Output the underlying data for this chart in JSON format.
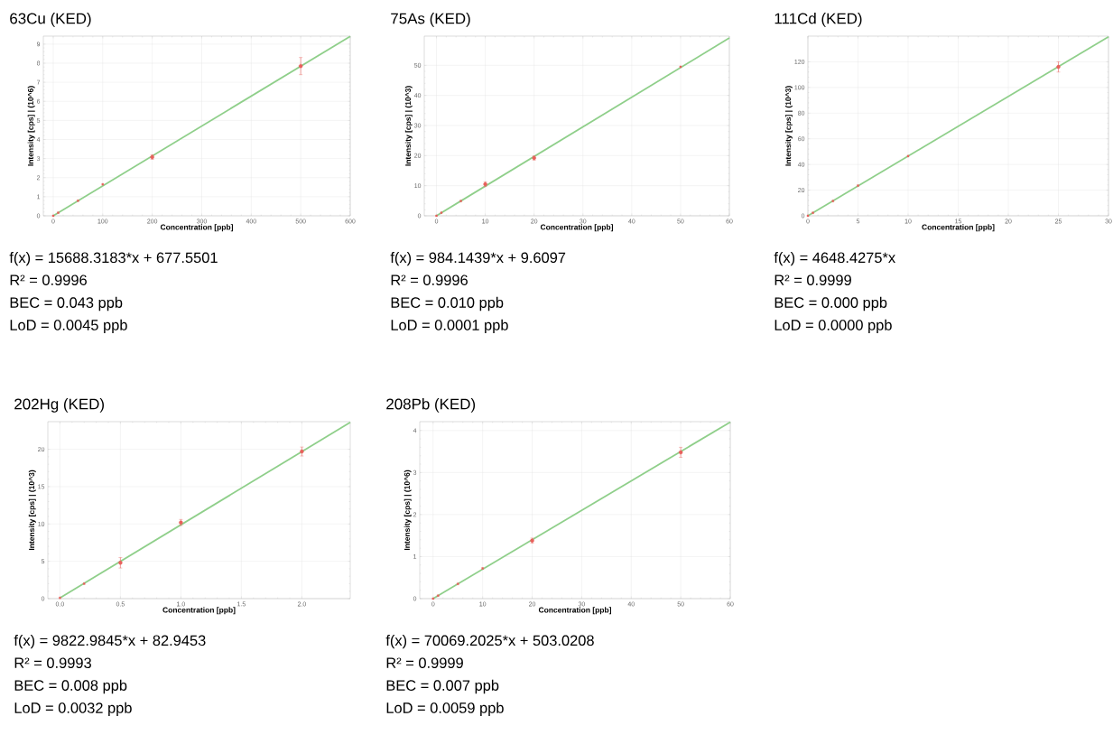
{
  "chart_data": [
    {
      "type": "scatter",
      "title": "63Cu (KED)",
      "xlabel": "Concentration [ppb]",
      "ylabel": "Intensity [cps] | (10^6)",
      "xlim": [
        -20,
        600
      ],
      "ylim": [
        0,
        9.42
      ],
      "xticks": [
        0,
        100,
        200,
        300,
        400,
        500,
        600
      ],
      "yticks": [
        0,
        1,
        2,
        3,
        4,
        5,
        6,
        7,
        8,
        9
      ],
      "grid": true,
      "series": [
        {
          "type": "line",
          "color": "#8fcf8a",
          "marker": "none",
          "x": [
            0,
            600
          ],
          "values": [
            0,
            9.41
          ]
        },
        {
          "type": "scatter",
          "color": "#e8605c",
          "marker": "square",
          "x": [
            0,
            10,
            50,
            100,
            200,
            500
          ],
          "values": [
            0,
            0.16,
            0.79,
            1.65,
            3.08,
            7.85
          ],
          "errors": [
            null,
            null,
            null,
            null,
            0.12,
            0.45
          ]
        }
      ],
      "annotations": [
        "f(x) = 15688.3183*x + 677.5501",
        "R² = 0.9996",
        "BEC = 0.043 ppb",
        "LoD = 0.0045 ppb"
      ]
    },
    {
      "type": "scatter",
      "title": "75As (KED)",
      "xlabel": "Concentration [ppb]",
      "ylabel": "Intensity [cps] | (10^3)",
      "xlim": [
        -2.5,
        60
      ],
      "ylim": [
        0,
        59.7
      ],
      "xticks": [
        0,
        10,
        20,
        30,
        40,
        50,
        60
      ],
      "yticks": [
        0,
        10,
        20,
        30,
        40,
        50
      ],
      "grid": true,
      "series": [
        {
          "type": "line",
          "color": "#8fcf8a",
          "marker": "none",
          "x": [
            0,
            60
          ],
          "values": [
            0,
            59.1
          ]
        },
        {
          "type": "scatter",
          "color": "#e8605c",
          "marker": "square",
          "x": [
            0,
            1,
            5,
            10,
            20,
            50
          ],
          "values": [
            0,
            1.0,
            4.9,
            10.5,
            19.2,
            49.5
          ],
          "errors": [
            null,
            null,
            null,
            0.8,
            0.7,
            null
          ]
        }
      ],
      "annotations": [
        "f(x) = 984.1439*x + 9.6097",
        "R² = 0.9996",
        "BEC = 0.010 ppb",
        "LoD = 0.0001 ppb"
      ]
    },
    {
      "type": "scatter",
      "title": "111Cd (KED)",
      "xlabel": "Concentration [ppb]",
      "ylabel": "Intensity [cps] | (10^3)",
      "xlim": [
        0,
        30
      ],
      "ylim": [
        0,
        140
      ],
      "xticks": [
        0,
        5,
        10,
        15,
        20,
        25,
        30
      ],
      "yticks": [
        0,
        20,
        40,
        60,
        80,
        100,
        120
      ],
      "grid": true,
      "series": [
        {
          "type": "line",
          "color": "#8fcf8a",
          "marker": "none",
          "x": [
            0,
            30
          ],
          "values": [
            0,
            139.5
          ]
        },
        {
          "type": "scatter",
          "color": "#e8605c",
          "marker": "square",
          "x": [
            0,
            0.5,
            2.5,
            5,
            10,
            25
          ],
          "values": [
            0,
            2.3,
            11.5,
            23.5,
            46.5,
            116
          ],
          "errors": [
            null,
            null,
            null,
            null,
            null,
            4
          ]
        }
      ],
      "annotations": [
        "f(x) = 4648.4275*x",
        "R² = 0.9999",
        "BEC = 0.000 ppb",
        "LoD = 0.0000 ppb"
      ]
    },
    {
      "type": "scatter",
      "title": "202Hg (KED)",
      "xlabel": "Concentration [ppb]",
      "ylabel": "Intensity [cps] | (10^3)",
      "xlim": [
        -0.1,
        2.4
      ],
      "ylim": [
        0,
        23.7
      ],
      "xticks": [
        {
          "value": 0,
          "label": "0.0"
        },
        {
          "value": 0.5,
          "label": "0.5"
        },
        {
          "value": 1,
          "label": "1.0"
        },
        {
          "value": 1.5,
          "label": "1.5"
        },
        {
          "value": 2,
          "label": "2.0"
        }
      ],
      "yticks": [
        0,
        5,
        10,
        15,
        20
      ],
      "grid": true,
      "series": [
        {
          "type": "line",
          "color": "#8fcf8a",
          "marker": "none",
          "x": [
            0,
            2.4
          ],
          "values": [
            0.1,
            23.6
          ]
        },
        {
          "type": "scatter",
          "color": "#e8605c",
          "marker": "square",
          "x": [
            0,
            0.2,
            0.5,
            1.0,
            2.0
          ],
          "values": [
            0.1,
            2.0,
            4.8,
            10.2,
            19.7
          ],
          "errors": [
            null,
            null,
            0.7,
            0.4,
            0.6
          ]
        }
      ],
      "annotations": [
        "f(x) = 9822.9845*x + 82.9453",
        "R² = 0.9993",
        "BEC = 0.008 ppb",
        "LoD = 0.0032 ppb"
      ]
    },
    {
      "type": "scatter",
      "title": "208Pb (KED)",
      "xlabel": "Concentration [ppb]",
      "ylabel": "Intensity [cps] | (10^6)",
      "xlim": [
        -2.7,
        60
      ],
      "ylim": [
        0,
        4.21
      ],
      "xticks": [
        0,
        10,
        20,
        30,
        40,
        50,
        60
      ],
      "yticks": [
        0,
        1,
        2,
        3,
        4
      ],
      "grid": true,
      "series": [
        {
          "type": "line",
          "color": "#8fcf8a",
          "marker": "none",
          "x": [
            0,
            60
          ],
          "values": [
            0,
            4.2
          ]
        },
        {
          "type": "scatter",
          "color": "#e8605c",
          "marker": "square",
          "x": [
            0,
            1,
            5,
            10,
            20,
            50
          ],
          "values": [
            0,
            0.07,
            0.35,
            0.72,
            1.38,
            3.48
          ],
          "errors": [
            null,
            null,
            null,
            null,
            0.06,
            0.12
          ]
        }
      ],
      "annotations": [
        "f(x) = 70069.2025*x + 503.0208",
        "R² = 0.9999",
        "BEC = 0.007 ppb",
        "LoD = 0.0059 ppb"
      ]
    }
  ]
}
